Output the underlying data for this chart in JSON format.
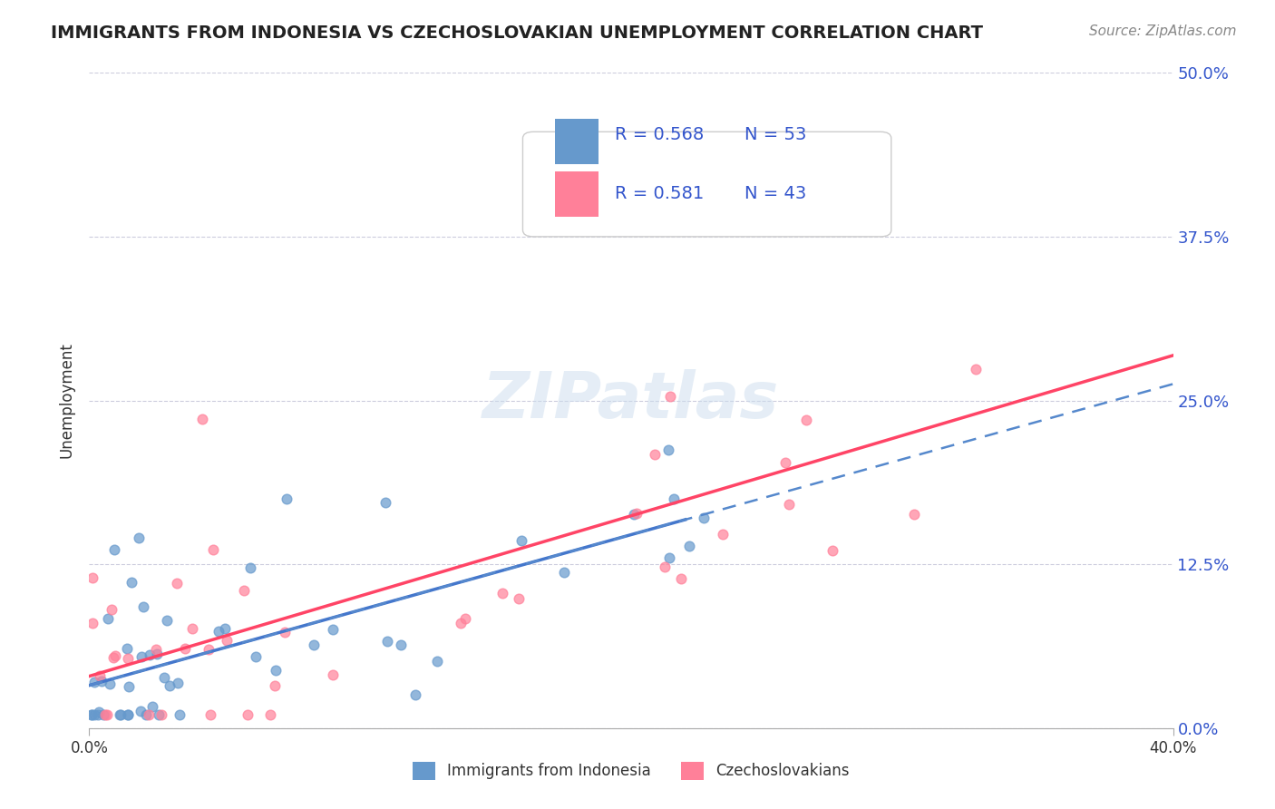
{
  "title": "IMMIGRANTS FROM INDONESIA VS CZECHOSLOVAKIAN UNEMPLOYMENT CORRELATION CHART",
  "source": "Source: ZipAtlas.com",
  "ylabel_ticks": [
    "0.0%",
    "12.5%",
    "25.0%",
    "37.5%",
    "50.0%"
  ],
  "ylabel_label": "Unemployment",
  "xlim": [
    0.0,
    0.4
  ],
  "ylim": [
    0.0,
    0.5
  ],
  "yticks": [
    0.0,
    0.125,
    0.25,
    0.375,
    0.5
  ],
  "xticks": [
    0.0,
    0.4
  ],
  "legend_scatter1_label": "Immigrants from Indonesia",
  "legend_scatter2_label": "Czechoslovakians",
  "color_blue": "#6699CC",
  "color_pink": "#FF8099",
  "grid_color": "#CCCCDD",
  "bg_color": "#FFFFFF"
}
